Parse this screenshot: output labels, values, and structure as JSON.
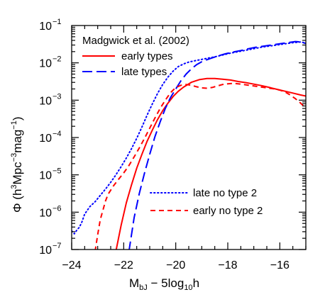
{
  "chart_data": {
    "type": "line",
    "title": "",
    "xlabel": {
      "main": "M",
      "sub": "bJ",
      "rest": " − 5log",
      "sub2": "10",
      "tail": "h"
    },
    "ylabel": {
      "prefix": "Φ  (h",
      "sup1": "3",
      "mid": "Mpc",
      "sup2": "−3",
      "mid2": "mag",
      "sup3": "−1",
      "suffix": ")"
    },
    "xlim": [
      -24,
      -15
    ],
    "ylim_log10": [
      -7,
      -1
    ],
    "log_y": true,
    "x_ticks": [
      -24,
      -22,
      -20,
      -18,
      -16
    ],
    "x_tick_labels": [
      "−24",
      "−22",
      "−20",
      "−18",
      "−16"
    ],
    "y_ticks_log10": [
      -7,
      -6,
      -5,
      -4,
      -3,
      -2,
      -1
    ],
    "y_tick_labels": [
      {
        "base": "10",
        "exp": "−7"
      },
      {
        "base": "10",
        "exp": "−6"
      },
      {
        "base": "10",
        "exp": "−5"
      },
      {
        "base": "10",
        "exp": "−4"
      },
      {
        "base": "10",
        "exp": "−3"
      },
      {
        "base": "10",
        "exp": "−2"
      },
      {
        "base": "10",
        "exp": "−1"
      }
    ],
    "legend_top": {
      "title": "Madgwick et al. (2002)",
      "entries": [
        "early types",
        "late types"
      ]
    },
    "legend_bottom": {
      "entries": [
        "late no type 2",
        "early no type 2"
      ]
    },
    "colors": {
      "red": "#ff0000",
      "blue": "#0000ff"
    },
    "series": [
      {
        "name": "early types",
        "color": "#ff0000",
        "style": "solid",
        "x": [
          -22.3,
          -22.1,
          -21.9,
          -21.7,
          -21.5,
          -21.3,
          -21.1,
          -20.9,
          -20.7,
          -20.5,
          -20.3,
          -20.1,
          -19.9,
          -19.7,
          -19.4,
          -19.1,
          -18.8,
          -18.5,
          -18.2,
          -17.9,
          -17.6,
          -17.3,
          -17.0,
          -16.7,
          -16.4,
          -16.1,
          -15.8,
          -15.5,
          -15.2,
          -15.0
        ],
        "log10y": [
          -7.05,
          -6.35,
          -5.75,
          -5.27,
          -4.82,
          -4.45,
          -4.1,
          -3.8,
          -3.52,
          -3.28,
          -3.08,
          -2.9,
          -2.76,
          -2.65,
          -2.52,
          -2.45,
          -2.42,
          -2.42,
          -2.44,
          -2.46,
          -2.5,
          -2.53,
          -2.57,
          -2.61,
          -2.66,
          -2.71,
          -2.76,
          -2.81,
          -2.86,
          -2.89
        ]
      },
      {
        "name": "late types",
        "color": "#0000ff",
        "style": "dashed",
        "x": [
          -21.8,
          -21.6,
          -21.4,
          -21.2,
          -21.0,
          -20.8,
          -20.6,
          -20.4,
          -20.2,
          -20.0,
          -19.8,
          -19.6,
          -19.4,
          -19.2,
          -19.0,
          -18.7,
          -18.4,
          -18.1,
          -17.8,
          -17.5,
          -17.2,
          -16.9,
          -16.6,
          -16.3,
          -16.0,
          -15.7,
          -15.4,
          -15.2,
          -15.0
        ],
        "log10y": [
          -7.05,
          -6.15,
          -5.5,
          -4.95,
          -4.45,
          -3.98,
          -3.58,
          -3.22,
          -2.93,
          -2.7,
          -2.48,
          -2.3,
          -2.16,
          -2.05,
          -1.97,
          -1.89,
          -1.82,
          -1.76,
          -1.71,
          -1.67,
          -1.62,
          -1.58,
          -1.55,
          -1.52,
          -1.49,
          -1.46,
          -1.43,
          -1.44,
          -1.48
        ]
      },
      {
        "name": "late no type 2",
        "color": "#0000ff",
        "style": "dotted",
        "x": [
          -24.0,
          -23.9,
          -23.8,
          -23.7,
          -23.6,
          -23.5,
          -23.3,
          -23.1,
          -22.9,
          -22.7,
          -22.5,
          -22.3,
          -22.1,
          -21.9,
          -21.7,
          -21.5,
          -21.3,
          -21.1,
          -20.9,
          -20.7,
          -20.5,
          -20.3,
          -20.1,
          -19.9,
          -19.7,
          -19.5,
          -19.3,
          -19.1,
          -18.8,
          -18.5,
          -18.2,
          -17.9,
          -17.6,
          -17.3,
          -17.0,
          -16.7,
          -16.4,
          -16.1,
          -15.8,
          -15.5,
          -15.2,
          -15.0
        ],
        "log10y": [
          -6.5,
          -6.58,
          -6.48,
          -6.4,
          -6.25,
          -6.05,
          -5.85,
          -5.72,
          -5.55,
          -5.38,
          -5.2,
          -5.0,
          -4.78,
          -4.55,
          -4.3,
          -4.02,
          -3.72,
          -3.4,
          -3.1,
          -2.82,
          -2.58,
          -2.38,
          -2.22,
          -2.1,
          -2.03,
          -1.98,
          -1.95,
          -1.92,
          -1.88,
          -1.84,
          -1.79,
          -1.74,
          -1.7,
          -1.66,
          -1.62,
          -1.58,
          -1.55,
          -1.52,
          -1.49,
          -1.46,
          -1.44,
          -1.47
        ]
      },
      {
        "name": "early no type 2",
        "color": "#ff0000",
        "style": "dashed",
        "x": [
          -23.1,
          -23.0,
          -22.9,
          -22.8,
          -22.7,
          -22.6,
          -22.4,
          -22.2,
          -22.0,
          -21.8,
          -21.6,
          -21.4,
          -21.2,
          -21.0,
          -20.8,
          -20.6,
          -20.4,
          -20.2,
          -20.0,
          -19.8,
          -19.6,
          -19.4,
          -19.2,
          -19.0,
          -18.8,
          -18.6,
          -18.4,
          -18.2,
          -18.0,
          -17.8,
          -17.6,
          -17.4,
          -17.2,
          -17.0,
          -16.8,
          -16.6,
          -16.4,
          -16.2,
          -16.0,
          -15.8,
          -15.6,
          -15.4,
          -15.2,
          -15.0
        ],
        "log10y": [
          -7.05,
          -6.6,
          -6.2,
          -5.95,
          -5.7,
          -5.52,
          -5.3,
          -5.12,
          -4.95,
          -4.75,
          -4.52,
          -4.28,
          -4.02,
          -3.75,
          -3.48,
          -3.22,
          -3.0,
          -2.8,
          -2.66,
          -2.6,
          -2.58,
          -2.6,
          -2.64,
          -2.67,
          -2.68,
          -2.66,
          -2.62,
          -2.58,
          -2.56,
          -2.55,
          -2.56,
          -2.58,
          -2.6,
          -2.62,
          -2.64,
          -2.66,
          -2.68,
          -2.7,
          -2.73,
          -2.78,
          -2.86,
          -2.96,
          -3.08,
          -3.22
        ]
      }
    ]
  }
}
